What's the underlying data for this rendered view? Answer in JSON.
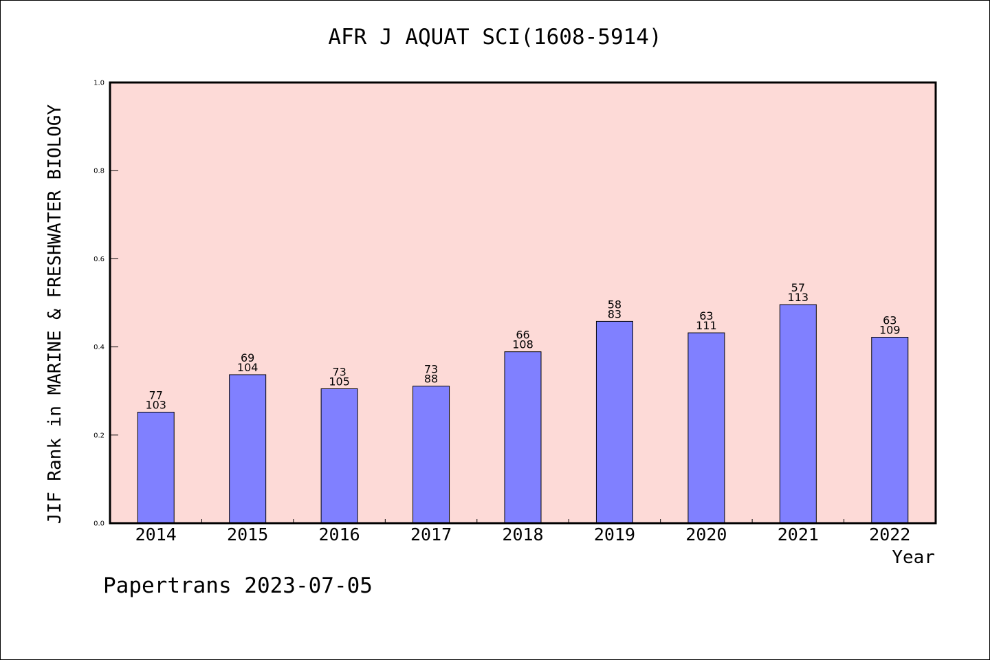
{
  "colors": {
    "plot_background": "#fddad7",
    "bar_fill": "#8080ff",
    "bar_stroke": "#000000",
    "axis": "#000000"
  },
  "footer": "Papertrans 2023-07-05",
  "chart_data": {
    "type": "bar",
    "title": "AFR J AQUAT SCI(1608-5914)",
    "xlabel": "Year",
    "ylabel": "JIF Rank in MARINE & FRESHWATER BIOLOGY",
    "ylim": [
      0,
      1.0
    ],
    "yticks": [
      "0.0",
      "0.2",
      "0.4",
      "0.6",
      "0.8",
      "1.0"
    ],
    "grid": false,
    "categories": [
      "2014",
      "2015",
      "2016",
      "2017",
      "2018",
      "2019",
      "2020",
      "2021",
      "2022"
    ],
    "values": [
      0.252,
      0.337,
      0.305,
      0.311,
      0.389,
      0.458,
      0.432,
      0.496,
      0.422
    ],
    "rank": [
      "77",
      "69",
      "73",
      "73",
      "66",
      "58",
      "63",
      "57",
      "63"
    ],
    "total": [
      "103",
      "104",
      "105",
      "88",
      "108",
      "83",
      "111",
      "113",
      "109"
    ]
  }
}
